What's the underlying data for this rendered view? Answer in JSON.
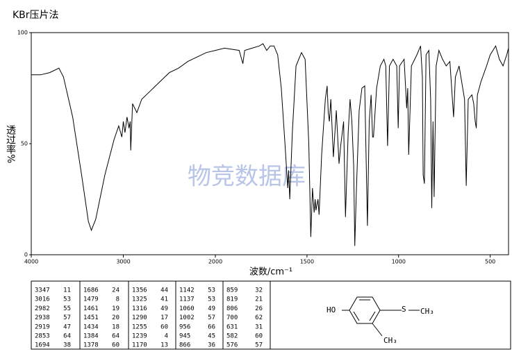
{
  "header": {
    "title": "KBr压片法"
  },
  "chart_data": {
    "type": "line",
    "x_label": "波数/cm⁻¹",
    "y_label": "透过率%",
    "watermark": "物竞数据库",
    "xlim": [
      4000,
      400
    ],
    "xticks": [
      4000,
      3000,
      2000,
      1500,
      1000,
      500
    ],
    "x_scale_break": 2000,
    "ylim": [
      0,
      100
    ],
    "yticks": [
      0,
      50,
      100
    ],
    "color": "#000000",
    "x": [
      4000,
      3900,
      3800,
      3700,
      3650,
      3550,
      3450,
      3380,
      3347,
      3300,
      3200,
      3100,
      3050,
      3016,
      3000,
      2982,
      2960,
      2938,
      2925,
      2919,
      2900,
      2853,
      2800,
      2700,
      2600,
      2500,
      2400,
      2300,
      2200,
      2100,
      2000,
      1950,
      1870,
      1850,
      1840,
      1800,
      1760,
      1740,
      1720,
      1700,
      1680,
      1660,
      1640,
      1620,
      1605,
      1600,
      1594,
      1580,
      1560,
      1530,
      1510,
      1490,
      1479,
      1470,
      1461,
      1455,
      1451,
      1440,
      1434,
      1420,
      1400,
      1390,
      1384,
      1378,
      1370,
      1356,
      1340,
      1325,
      1316,
      1300,
      1290,
      1275,
      1265,
      1255,
      1245,
      1239,
      1230,
      1215,
      1200,
      1185,
      1170,
      1160,
      1150,
      1142,
      1137,
      1120,
      1100,
      1080,
      1070,
      1060,
      1050,
      1030,
      1010,
      1002,
      995,
      970,
      956,
      950,
      945,
      930,
      900,
      880,
      870,
      866,
      859,
      850,
      835,
      825,
      819,
      812,
      806,
      795,
      780,
      760,
      740,
      720,
      700,
      690,
      670,
      650,
      640,
      631,
      620,
      600,
      590,
      582,
      576,
      570,
      550,
      520,
      500,
      470,
      450,
      430,
      410,
      400
    ],
    "values": [
      81,
      81,
      82,
      84,
      80,
      62,
      35,
      15,
      11,
      16,
      36,
      52,
      58,
      53,
      60,
      55,
      62,
      57,
      60,
      47,
      68,
      64,
      70,
      74,
      78,
      82,
      84,
      87,
      89,
      91,
      92,
      93,
      92,
      86,
      92,
      93,
      94,
      95,
      92,
      94,
      94,
      90,
      75,
      50,
      30,
      38,
      25,
      55,
      85,
      91,
      88,
      50,
      8,
      30,
      19,
      25,
      20,
      25,
      18,
      45,
      70,
      76,
      64,
      60,
      70,
      44,
      65,
      41,
      49,
      60,
      17,
      55,
      70,
      60,
      40,
      4,
      30,
      65,
      75,
      76,
      13,
      60,
      72,
      53,
      53,
      75,
      85,
      88,
      85,
      49,
      85,
      88,
      85,
      57,
      85,
      88,
      66,
      75,
      45,
      85,
      90,
      94,
      80,
      36,
      32,
      90,
      92,
      70,
      21,
      60,
      26,
      85,
      92,
      88,
      85,
      87,
      62,
      80,
      85,
      75,
      70,
      31,
      70,
      72,
      68,
      60,
      57,
      72,
      78,
      85,
      90,
      94,
      88,
      85,
      90,
      93
    ]
  },
  "peak_table": {
    "columns": [
      [
        [
          3347,
          11
        ],
        [
          3016,
          53
        ],
        [
          2982,
          55
        ],
        [
          2938,
          57
        ],
        [
          2919,
          47
        ],
        [
          2853,
          64
        ],
        [
          1694,
          38
        ]
      ],
      [
        [
          1686,
          24
        ],
        [
          1479,
          8
        ],
        [
          1461,
          19
        ],
        [
          1451,
          20
        ],
        [
          1434,
          18
        ],
        [
          1384,
          64
        ],
        [
          1378,
          60
        ]
      ],
      [
        [
          1356,
          44
        ],
        [
          1325,
          41
        ],
        [
          1316,
          49
        ],
        [
          1290,
          17
        ],
        [
          1255,
          60
        ],
        [
          1239,
          4
        ],
        [
          1170,
          13
        ]
      ],
      [
        [
          1142,
          53
        ],
        [
          1137,
          53
        ],
        [
          1060,
          49
        ],
        [
          1002,
          57
        ],
        [
          956,
          66
        ],
        [
          945,
          45
        ],
        [
          866,
          36
        ]
      ],
      [
        [
          859,
          32
        ],
        [
          819,
          21
        ],
        [
          806,
          26
        ],
        [
          700,
          62
        ],
        [
          631,
          31
        ],
        [
          582,
          60
        ],
        [
          576,
          57
        ]
      ]
    ]
  },
  "structure": {
    "labels": [
      "HO",
      "S",
      "CH₃",
      "CH₃"
    ]
  }
}
